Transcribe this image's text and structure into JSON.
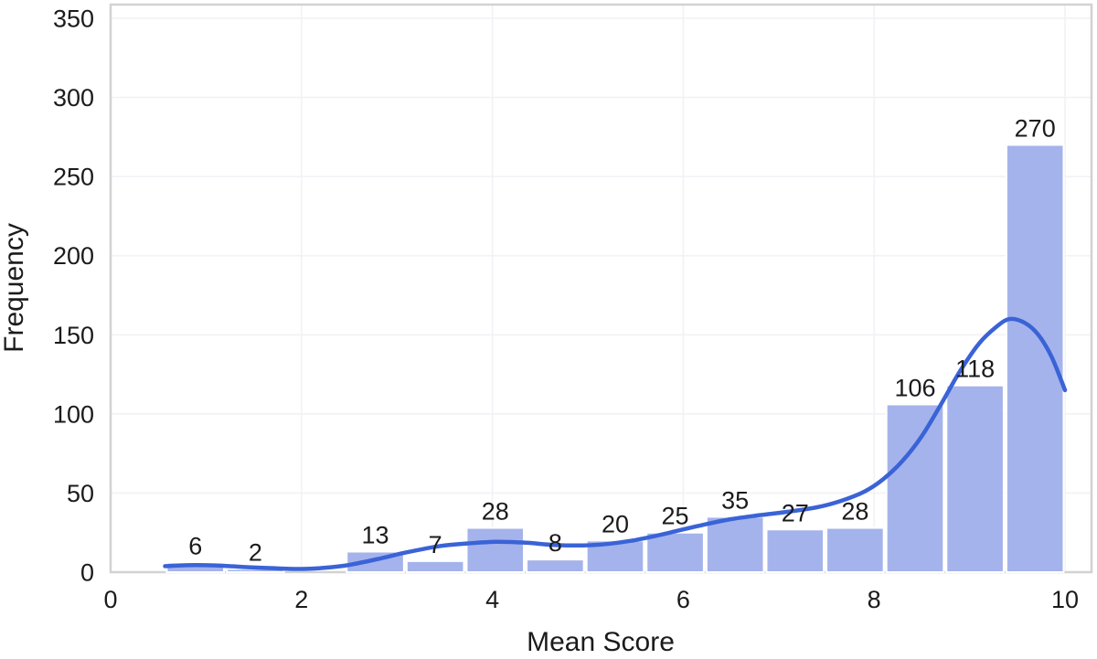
{
  "chart_data": {
    "type": "bar",
    "subtype": "histogram-with-kde",
    "title": "",
    "xlabel": "Mean Score",
    "ylabel": "Frequency",
    "xlim": [
      0,
      10
    ],
    "ylim": [
      0,
      350
    ],
    "x_ticks": [
      0,
      2,
      4,
      6,
      8,
      10
    ],
    "y_ticks": [
      0,
      50,
      100,
      150,
      200,
      250,
      300,
      350
    ],
    "grid": true,
    "legend": "none",
    "bins": {
      "start": 0.574,
      "width": 0.6284,
      "counts": [
        6,
        2,
        0,
        13,
        7,
        28,
        8,
        20,
        25,
        35,
        27,
        28,
        106,
        118,
        270
      ]
    },
    "bar_value_labels": [
      6,
      2,
      13,
      7,
      28,
      8,
      20,
      25,
      35,
      27,
      28,
      106,
      118,
      270
    ],
    "series": [
      {
        "name": "kde",
        "type": "line",
        "points": [
          [
            0.57,
            3.8
          ],
          [
            0.8,
            4.4
          ],
          [
            1.0,
            4.4
          ],
          [
            1.2,
            4.0
          ],
          [
            1.45,
            3.1
          ],
          [
            1.7,
            2.5
          ],
          [
            2.0,
            2.0
          ],
          [
            2.25,
            2.8
          ],
          [
            2.5,
            4.6
          ],
          [
            2.8,
            8.3
          ],
          [
            3.1,
            12.5
          ],
          [
            3.45,
            16.5
          ],
          [
            3.75,
            18.2
          ],
          [
            4.05,
            19.2
          ],
          [
            4.35,
            18.6
          ],
          [
            4.65,
            17.2
          ],
          [
            4.95,
            16.9
          ],
          [
            5.2,
            17.8
          ],
          [
            5.45,
            19.8
          ],
          [
            5.7,
            22.8
          ],
          [
            5.95,
            26.3
          ],
          [
            6.2,
            29.8
          ],
          [
            6.5,
            33.5
          ],
          [
            6.8,
            36.0
          ],
          [
            7.1,
            38.2
          ],
          [
            7.4,
            41.0
          ],
          [
            7.65,
            45.0
          ],
          [
            7.9,
            51.0
          ],
          [
            8.1,
            59.0
          ],
          [
            8.3,
            70.5
          ],
          [
            8.5,
            86.0
          ],
          [
            8.7,
            106.0
          ],
          [
            8.9,
            127.0
          ],
          [
            9.1,
            144.5
          ],
          [
            9.28,
            155.0
          ],
          [
            9.42,
            160.0
          ],
          [
            9.58,
            157.5
          ],
          [
            9.72,
            150.0
          ],
          [
            9.86,
            136.0
          ],
          [
            10.0,
            115.0
          ]
        ]
      }
    ],
    "colors": {
      "bar_fill": "#a4b3eb",
      "bar_edge": "#ffffff",
      "kde_line": "#3a63d7",
      "grid": "#f2f2f6",
      "frame": "#d2d2d2",
      "text": "#1b1b1b",
      "background": "#ffffff"
    }
  }
}
